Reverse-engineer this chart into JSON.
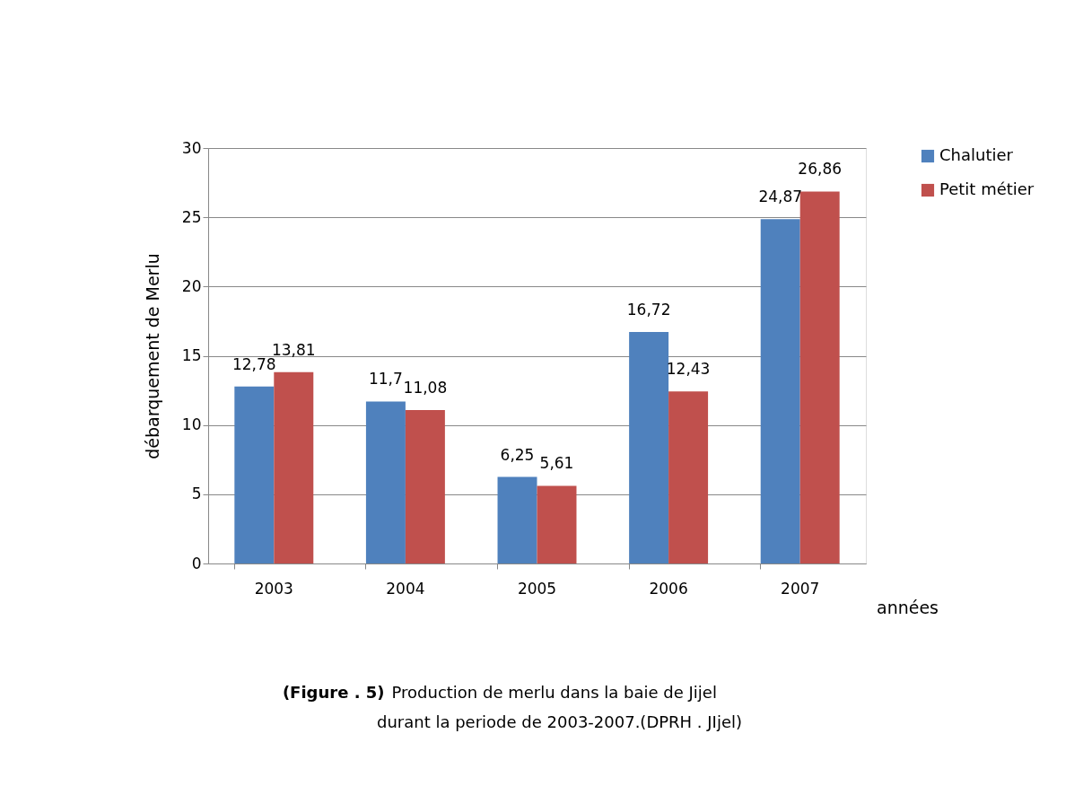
{
  "chart_data": {
    "type": "bar",
    "xlabel": "années",
    "ylabel": "débarquement de Merlu",
    "categories": [
      "2003",
      "2004",
      "2005",
      "2006",
      "2007"
    ],
    "series": [
      {
        "name": "Chalutier",
        "color": "#4f81bd",
        "values": [
          12.78,
          11.7,
          6.25,
          16.72,
          24.87
        ],
        "value_labels": [
          "12,78",
          "11,7",
          "6,25",
          "16,72",
          "24,87"
        ]
      },
      {
        "name": "Petit métier",
        "color": "#c0504d",
        "values": [
          13.81,
          11.08,
          5.61,
          12.43,
          26.86
        ],
        "value_labels": [
          "13,81",
          "11,08",
          "5,61",
          "12,43",
          "26,86"
        ]
      }
    ],
    "ylim": [
      0,
      30
    ],
    "yticks": [
      0,
      5,
      10,
      15,
      20,
      25,
      30
    ],
    "grid": "y",
    "legend": "right",
    "annotations": [
      "(Figure . 5) Production de merlu dans la baie de Jijel durant la periode de 2003-2007.(DPRH . JIjel)"
    ]
  }
}
